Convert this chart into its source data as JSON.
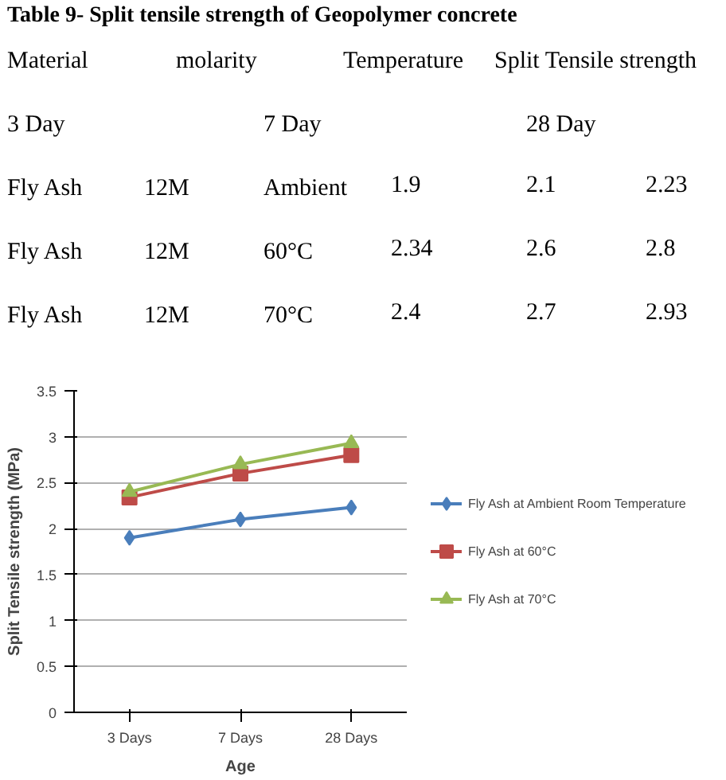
{
  "chart_data": {
    "type": "line",
    "title": "Table 9- Split tensile strength of Geopolymer concrete",
    "annotations": [
      "Material",
      "molarity",
      "Temperature",
      "Split Tensile strength",
      "3 Day",
      "7 Day",
      "28 Day",
      "Fly Ash",
      "12M",
      "Ambient",
      "1.9",
      "2.1",
      "2.23",
      "Fly Ash",
      "12M",
      "60°C",
      "2.34",
      "2.6",
      "2.8",
      "Fly Ash",
      "12M",
      "70°C",
      "2.4",
      "2.7",
      "2.93"
    ],
    "categories": [
      "3 Days",
      "7 Days",
      "28 Days"
    ],
    "xlabel": "Age",
    "ylabel": "Split Tensile strength (MPa)",
    "series": [
      {
        "name": "Fly Ash at Ambient Room Temperature",
        "color": "#4a7ebb",
        "marker": "diamond",
        "values": [
          1.9,
          2.1,
          2.23
        ]
      },
      {
        "name": "Fly Ash at 60°C",
        "color": "#be4b48",
        "marker": "square",
        "values": [
          2.34,
          2.6,
          2.8
        ]
      },
      {
        "name": "Fly Ash at 70°C",
        "color": "#98b954",
        "marker": "triangle",
        "values": [
          2.4,
          2.7,
          2.93
        ]
      }
    ],
    "ylim": [
      0,
      3.5
    ],
    "yticks": [
      0,
      0.5,
      1,
      1.5,
      2,
      2.5,
      3,
      3.5
    ],
    "grid": "y",
    "legend": "right"
  }
}
